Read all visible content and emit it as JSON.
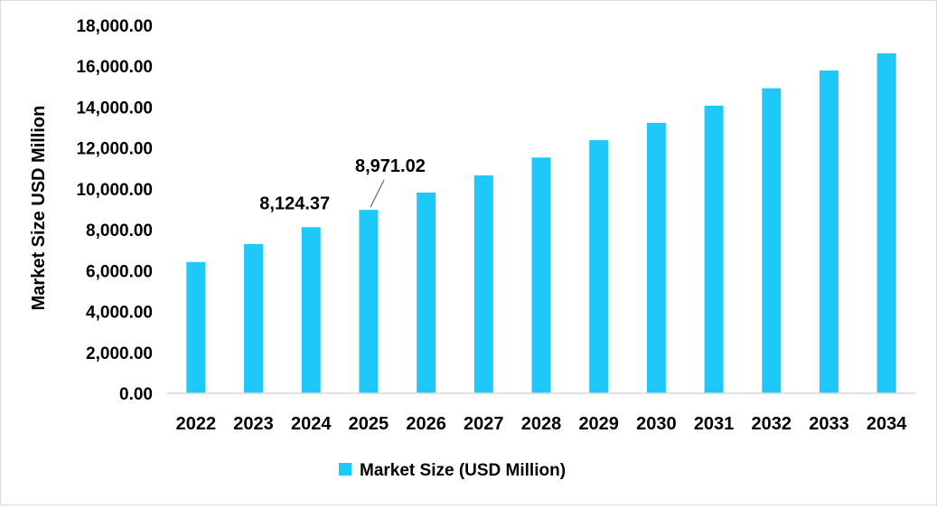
{
  "chart_data": {
    "type": "bar",
    "title": "",
    "xlabel": "",
    "ylabel": "Market Size USD Million",
    "categories": [
      "2022",
      "2023",
      "2024",
      "2025",
      "2026",
      "2027",
      "2028",
      "2029",
      "2030",
      "2031",
      "2032",
      "2033",
      "2034"
    ],
    "series": [
      {
        "name": "Market Size (USD Million)",
        "color": "#1ec8f8",
        "values": [
          6420,
          7300,
          8124.37,
          8971.02,
          9820,
          10660,
          11530,
          12380,
          13230,
          14070,
          14920,
          15790,
          16630
        ]
      }
    ],
    "ylim": [
      0,
      18000
    ],
    "yticks": [
      "0.00",
      "2,000.00",
      "4,000.00",
      "6,000.00",
      "8,000.00",
      "10,000.00",
      "12,000.00",
      "14,000.00",
      "16,000.00",
      "18,000.00"
    ],
    "ytick_values": [
      0,
      2000,
      4000,
      6000,
      8000,
      10000,
      12000,
      14000,
      16000,
      18000
    ],
    "data_labels": [
      {
        "category": "2024",
        "text": "8,124.37"
      },
      {
        "category": "2025",
        "text": "8,971.02"
      }
    ],
    "grid": false,
    "legend": "bottom-center"
  }
}
